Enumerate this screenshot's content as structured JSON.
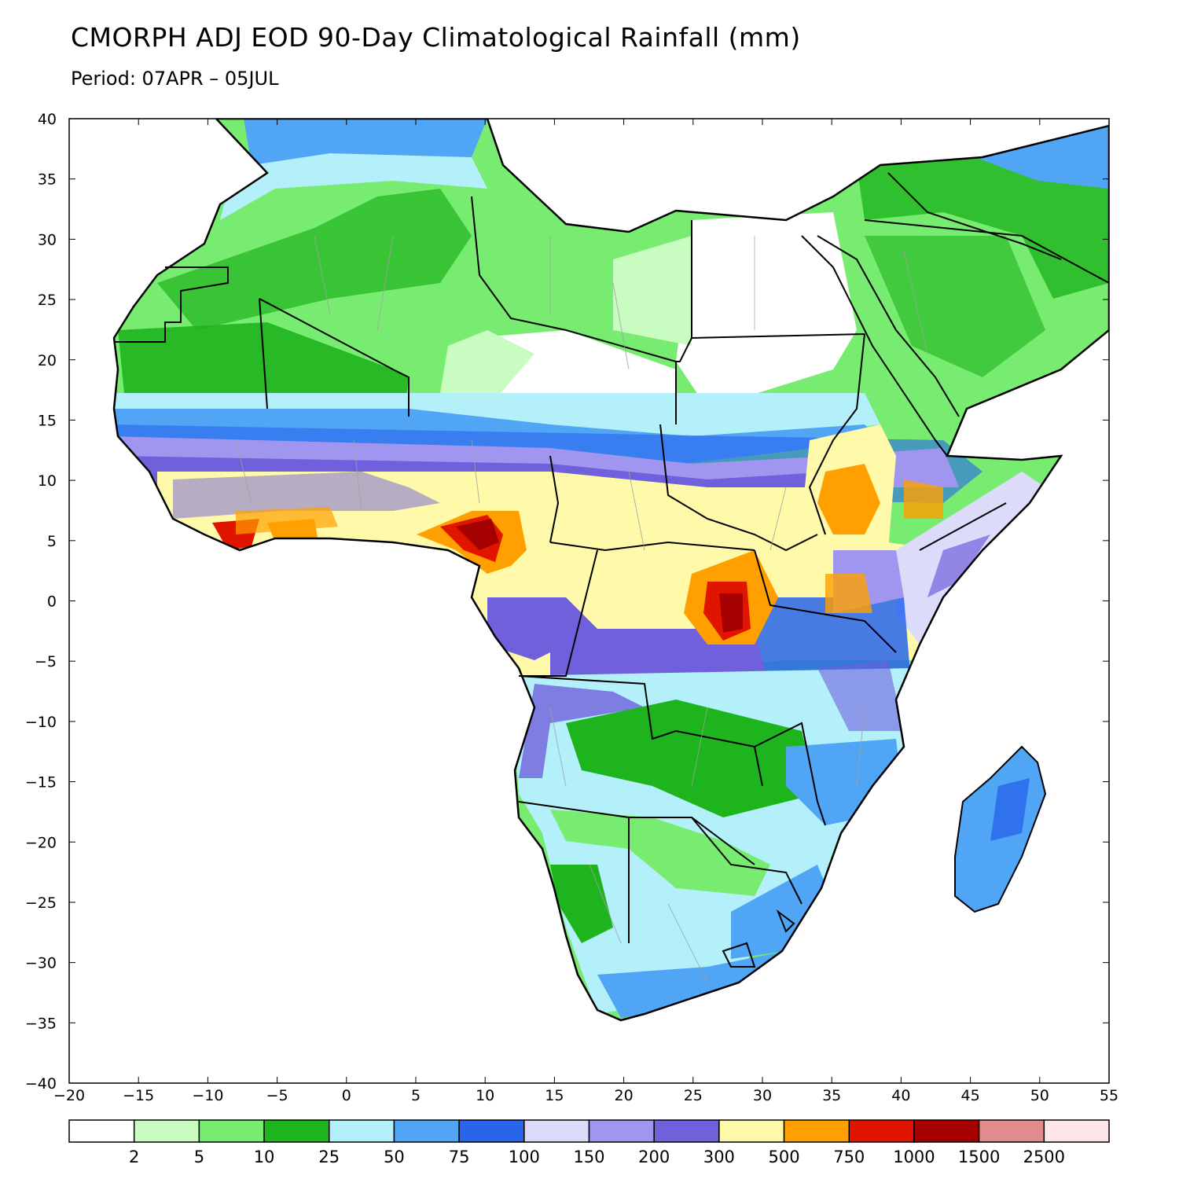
{
  "title": "CMORPH ADJ EOD 90-Day Climatological Rainfall (mm)",
  "subtitle": "Period: 07APR – 05JUL",
  "axes": {
    "lon_ticks": [
      "−20",
      "−15",
      "−10",
      "−5",
      "0",
      "5",
      "10",
      "15",
      "20",
      "25",
      "30",
      "35",
      "40",
      "45",
      "50",
      "55"
    ],
    "lat_ticks": [
      "40",
      "35",
      "30",
      "25",
      "20",
      "15",
      "10",
      "5",
      "0",
      "−5",
      "−10",
      "−15",
      "−20",
      "−25",
      "−30",
      "−35",
      "−40"
    ],
    "lon_range": [
      -20,
      55
    ],
    "lat_range": [
      -40,
      40
    ]
  },
  "colorbar": {
    "colors": [
      "#ffffff",
      "#c8fcc0",
      "#78ec70",
      "#1eb41e",
      "#b4f0fa",
      "#50a5f5",
      "#2864ec",
      "#dcdcfa",
      "#a096f0",
      "#7060dc",
      "#fffaaa",
      "#ffa000",
      "#e11400",
      "#a50000",
      "#e18c8c",
      "#ffe6e6"
    ],
    "labels": [
      "2",
      "5",
      "10",
      "25",
      "50",
      "75",
      "100",
      "150",
      "200",
      "300",
      "500",
      "750",
      "1000",
      "1500",
      "2500"
    ]
  },
  "legend": {
    "ocean_color": "#ffffff",
    "border_color": "#000000",
    "admin_color": "#a0a0a0"
  }
}
